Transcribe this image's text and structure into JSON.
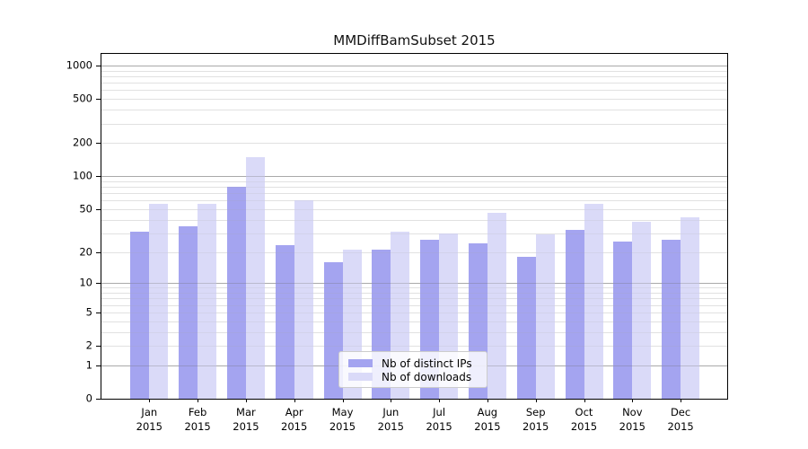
{
  "title": "MMDiffBamSubset 2015",
  "legend": {
    "items": [
      {
        "label": "Nb of distinct IPs",
        "color": "#a4a4f0"
      },
      {
        "label": "Nb of downloads",
        "color": "#dadaf8"
      }
    ]
  },
  "y_axis": {
    "tick_labels": [
      "0",
      "1",
      "2",
      "5",
      "10",
      "20",
      "50",
      "100",
      "200",
      "500",
      "1000"
    ]
  },
  "x_axis": {
    "months": [
      "Jan",
      "Feb",
      "Mar",
      "Apr",
      "May",
      "Jun",
      "Jul",
      "Aug",
      "Sep",
      "Oct",
      "Nov",
      "Dec"
    ],
    "year": "2015"
  },
  "chart_data": {
    "type": "bar",
    "title": "MMDiffBamSubset 2015",
    "categories": [
      "Jan 2015",
      "Feb 2015",
      "Mar 2015",
      "Apr 2015",
      "May 2015",
      "Jun 2015",
      "Jul 2015",
      "Aug 2015",
      "Sep 2015",
      "Oct 2015",
      "Nov 2015",
      "Dec 2015"
    ],
    "series": [
      {
        "name": "Nb of distinct IPs",
        "color": "#a4a4f0",
        "values": [
          31,
          35,
          80,
          23,
          16,
          21,
          26,
          24,
          18,
          32,
          25,
          26
        ]
      },
      {
        "name": "Nb of downloads",
        "color": "#dadaf8",
        "values": [
          56,
          56,
          150,
          60,
          21,
          31,
          30,
          46,
          29,
          56,
          38,
          42
        ]
      }
    ],
    "xlabel": "",
    "ylabel": "",
    "y_scale": "log10(1+v)",
    "y_ticks": [
      0,
      1,
      2,
      5,
      10,
      20,
      50,
      100,
      200,
      500,
      1000
    ],
    "ylim": [
      0,
      1000
    ],
    "grid": "major gray at 1,10,100,1000; faint log minors",
    "legend_position": "lower center"
  }
}
